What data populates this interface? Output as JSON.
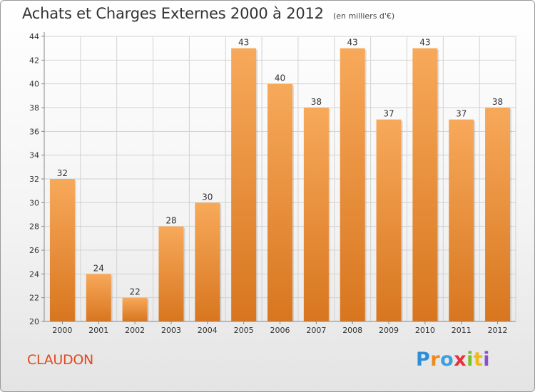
{
  "header": {
    "title": "Achats et Charges Externes 2000 à 2012",
    "unit": "(en milliers d'€)"
  },
  "footer": {
    "town": "CLAUDON",
    "brand_letters": [
      "P",
      "r",
      "o",
      "x",
      "i",
      "t",
      "i"
    ]
  },
  "colors": {
    "bar_top": "#f7a95a",
    "bar_bottom": "#d8761f",
    "town": "#e04a20"
  },
  "chart_data": {
    "type": "bar",
    "categories": [
      "2000",
      "2001",
      "2002",
      "2003",
      "2004",
      "2005",
      "2006",
      "2007",
      "2008",
      "2009",
      "2010",
      "2011",
      "2012"
    ],
    "values": [
      32,
      24,
      22,
      28,
      30,
      43,
      40,
      38,
      43,
      37,
      43,
      37,
      38
    ],
    "title": "Achats et Charges Externes 2000 à 2012",
    "subtitle": "(en milliers d'€)",
    "ylim": [
      20,
      44
    ],
    "yticks": [
      20,
      22,
      24,
      26,
      28,
      30,
      32,
      34,
      36,
      38,
      40,
      42,
      44
    ],
    "grid": true,
    "data_labels": true
  }
}
